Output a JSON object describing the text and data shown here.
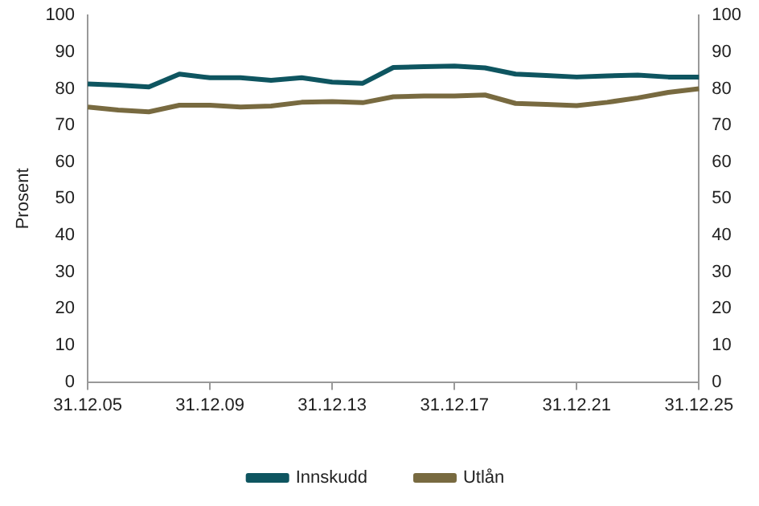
{
  "chart_data": {
    "type": "line",
    "ylabel": "Prosent",
    "categories": [
      "31.12.05",
      null,
      null,
      null,
      "31.12.09",
      null,
      null,
      null,
      "31.12.13",
      null,
      null,
      null,
      "31.12.17",
      null,
      null,
      null,
      "31.12.21",
      null,
      null,
      null,
      "31.12.25"
    ],
    "series": [
      {
        "name": "Innskudd",
        "color": "#0e5560",
        "values": [
          81.3,
          81,
          80.5,
          84,
          83,
          83,
          82.3,
          83,
          81.8,
          81.5,
          85.8,
          86,
          86.2,
          85.7,
          84,
          83.6,
          83.2,
          83.5,
          83.7,
          83.2,
          83.2
        ]
      },
      {
        "name": "Utlån",
        "color": "#786a40",
        "values": [
          75,
          74.2,
          73.7,
          75.5,
          75.5,
          75,
          75.3,
          76.3,
          76.5,
          76.2,
          77.8,
          78,
          78,
          78.3,
          76,
          75.7,
          75.4,
          76.3,
          77.5,
          79,
          80
        ]
      }
    ],
    "ylim": [
      0,
      100
    ],
    "yticks": [
      0,
      10,
      20,
      30,
      40,
      50,
      60,
      70,
      80,
      90,
      100
    ],
    "y2lim": [
      0,
      100
    ],
    "y2ticks": [
      0,
      10,
      20,
      30,
      40,
      50,
      60,
      70,
      80,
      90,
      100
    ],
    "grid": false,
    "legend": "bottom",
    "marker": "none",
    "line_style": "solid"
  }
}
